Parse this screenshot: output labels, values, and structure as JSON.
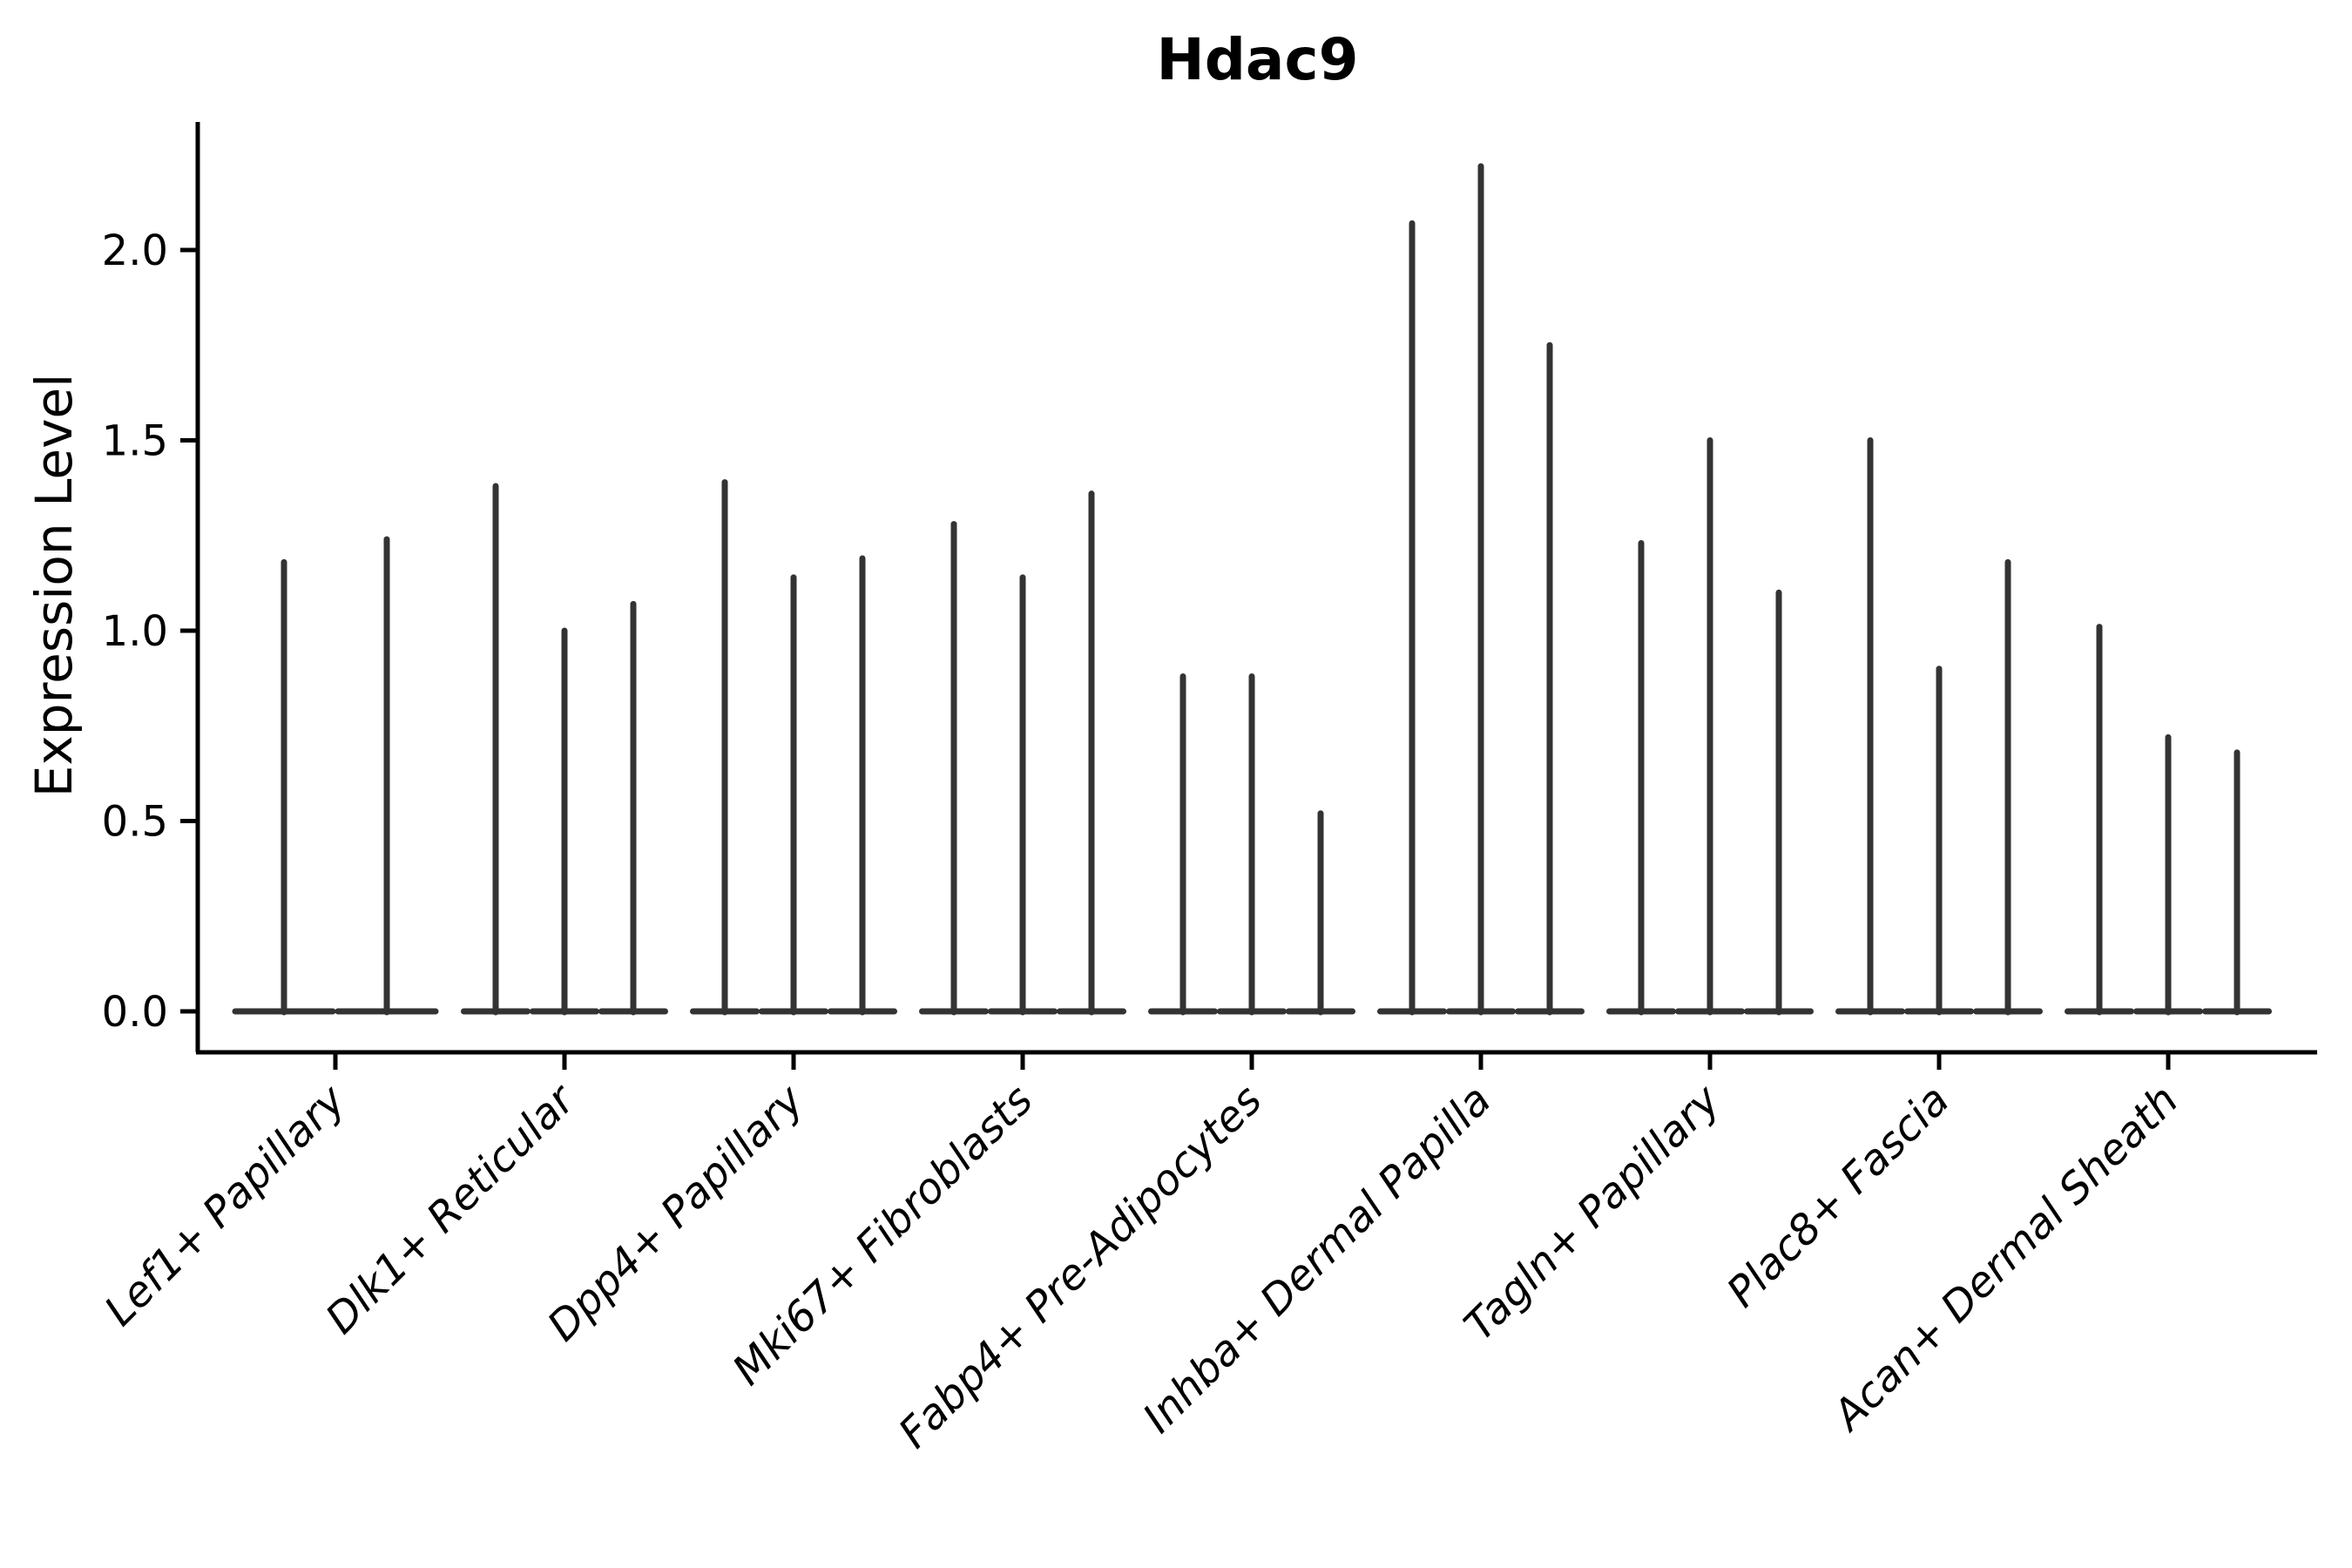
{
  "title": "Hdac9",
  "ylabel": "Expression Level",
  "chart_data": {
    "type": "violin",
    "title": "Hdac9",
    "xlabel": "",
    "ylabel": "Expression Level",
    "yticks": [
      0.0,
      0.5,
      1.0,
      1.5,
      2.0
    ],
    "ylim": [
      0.0,
      2.34
    ],
    "grid": false,
    "legend": false,
    "note_style": "thin spike violins: wide flat base at 0, narrow spike up to max expression",
    "categories": [
      "Lef1+ Papillary",
      "Dlk1+ Reticular",
      "Dpp4+ Papillary",
      "Mki67+ Fibroblasts",
      "Fabp4+ Pre-Adipocytes",
      "Inhba+ Dermal Papilla",
      "Tagln+ Papillary",
      "Plac8+ Fascia",
      "Acan+ Dermal Sheath"
    ],
    "violin_max_values_per_category": [
      [
        1.18,
        1.24
      ],
      [
        1.38,
        1.0,
        1.07
      ],
      [
        1.39,
        1.14,
        1.19
      ],
      [
        1.28,
        1.14,
        1.36
      ],
      [
        0.88,
        0.88,
        0.52
      ],
      [
        2.07,
        2.22,
        1.75
      ],
      [
        1.23,
        1.5,
        1.1
      ],
      [
        1.5,
        0.9,
        1.18
      ],
      [
        1.01,
        0.72,
        0.68
      ]
    ],
    "colors": {
      "violin": "#333333",
      "axis": "#000000",
      "text": "#000000",
      "background": "#ffffff"
    }
  }
}
